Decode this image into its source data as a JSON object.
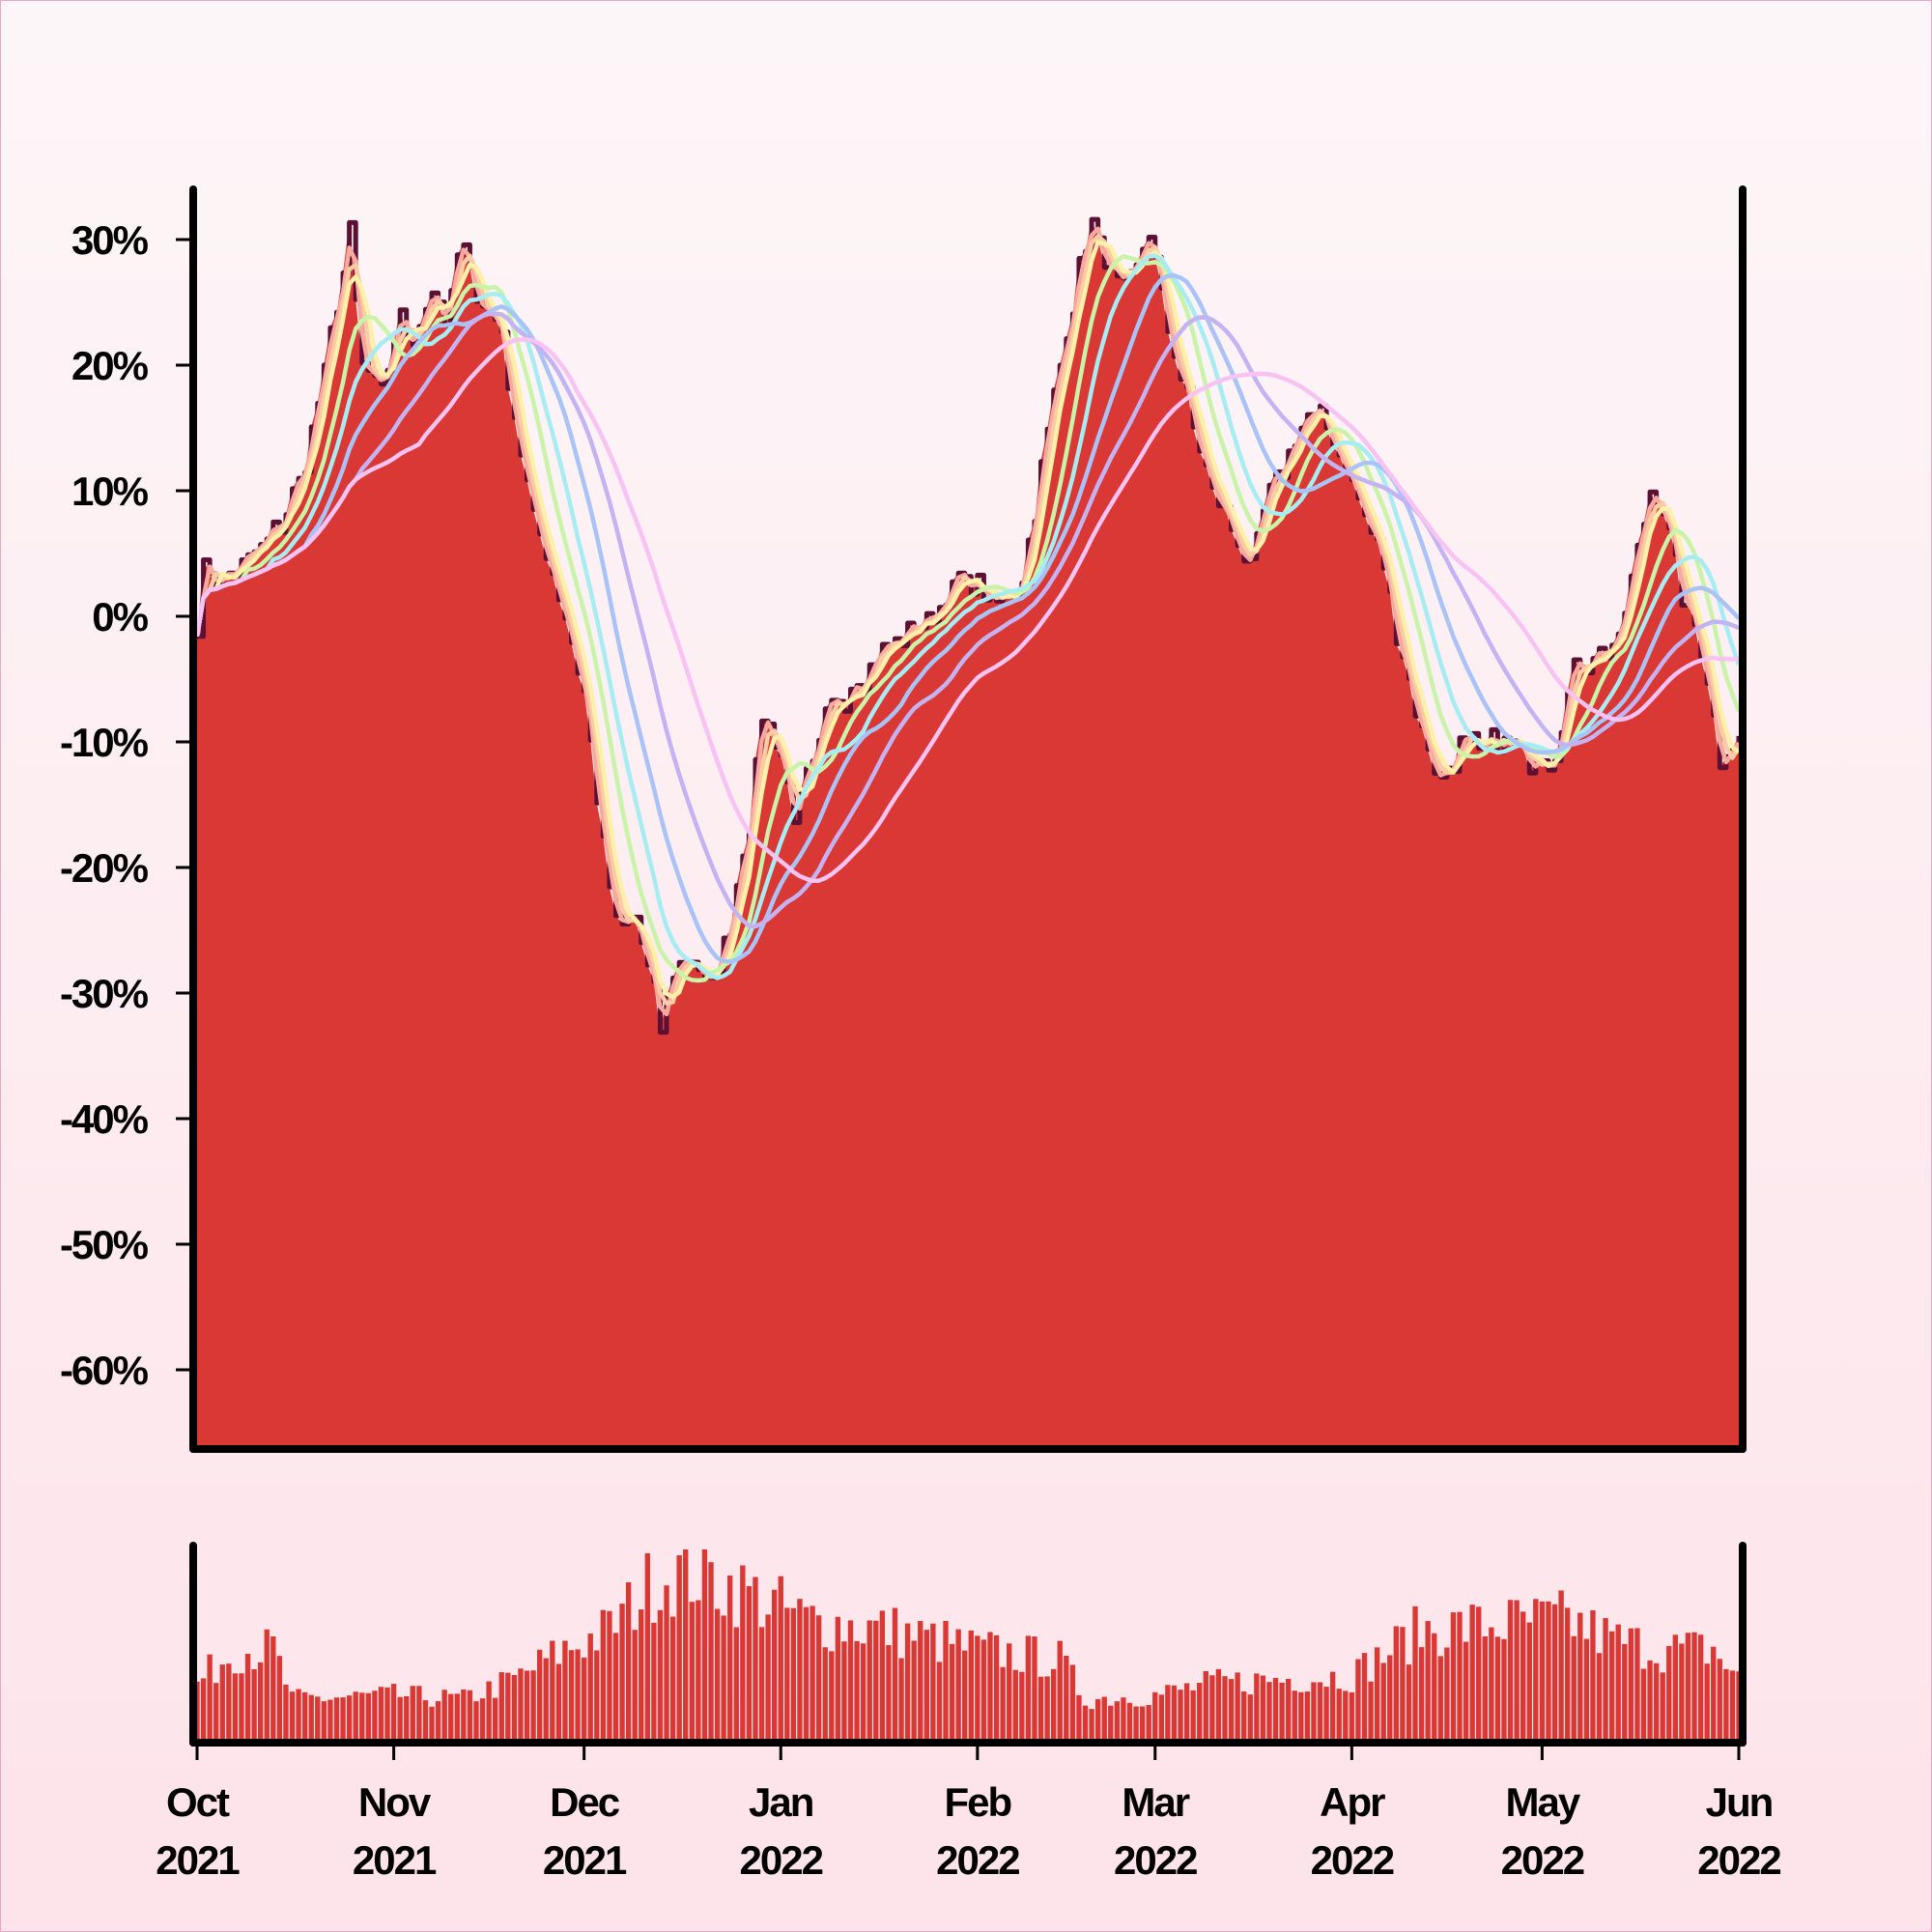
{
  "chart_data": {
    "type": "area",
    "x_axis": {
      "ticks": [
        {
          "date": "2021-10-01",
          "month": "Oct",
          "year": "2021"
        },
        {
          "date": "2021-11-01",
          "month": "Nov",
          "year": "2021"
        },
        {
          "date": "2021-12-01",
          "month": "Dec",
          "year": "2021"
        },
        {
          "date": "2022-01-01",
          "month": "Jan",
          "year": "2022"
        },
        {
          "date": "2022-02-01",
          "month": "Feb",
          "year": "2022"
        },
        {
          "date": "2022-03-01",
          "month": "Mar",
          "year": "2022"
        },
        {
          "date": "2022-04-01",
          "month": "Apr",
          "year": "2022"
        },
        {
          "date": "2022-05-01",
          "month": "May",
          "year": "2022"
        },
        {
          "date": "2022-06-01",
          "month": "Jun",
          "year": "2022"
        }
      ],
      "range": [
        "2021-10-01",
        "2022-06-01"
      ]
    },
    "y_axis": {
      "ticks": [
        30,
        20,
        10,
        0,
        -10,
        -20,
        -30,
        -40,
        -50,
        -60
      ],
      "tick_labels": [
        "30%",
        "20%",
        "10%",
        "0%",
        "-10%",
        "-20%",
        "-30%",
        "-40%",
        "-50%",
        "-60%"
      ],
      "ylim": [
        -66,
        34
      ]
    },
    "grid": false,
    "colors": {
      "area_fill": "#da3834",
      "area_edge": "#5c1034",
      "moving_averages": [
        "#f7a99e",
        "#fbcba5",
        "#fdf0a8",
        "#c9f3a8",
        "#a7ecf3",
        "#a9c3f7",
        "#c4b3f2",
        "#f8c2f3"
      ],
      "volume": "#da3834",
      "axis": "#000000"
    },
    "series": {
      "main_keypoints": [
        [
          "2021-10-01",
          0
        ],
        [
          "2021-10-02",
          4
        ],
        [
          "2021-10-05",
          3
        ],
        [
          "2021-10-10",
          5
        ],
        [
          "2021-10-14",
          7
        ],
        [
          "2021-10-18",
          12
        ],
        [
          "2021-10-22",
          22
        ],
        [
          "2021-10-25",
          30
        ],
        [
          "2021-10-27",
          20
        ],
        [
          "2021-10-30",
          18
        ],
        [
          "2021-11-02",
          24
        ],
        [
          "2021-11-04",
          22
        ],
        [
          "2021-11-07",
          26
        ],
        [
          "2021-11-09",
          23
        ],
        [
          "2021-11-12",
          31
        ],
        [
          "2021-11-14",
          25
        ],
        [
          "2021-11-17",
          24
        ],
        [
          "2021-11-20",
          16
        ],
        [
          "2021-11-23",
          8
        ],
        [
          "2021-11-27",
          2
        ],
        [
          "2021-12-01",
          -6
        ],
        [
          "2021-12-04",
          -18
        ],
        [
          "2021-12-06",
          -25
        ],
        [
          "2021-12-09",
          -24
        ],
        [
          "2021-12-11",
          -28
        ],
        [
          "2021-12-13",
          -33
        ],
        [
          "2021-12-15",
          -28
        ],
        [
          "2021-12-18",
          -27
        ],
        [
          "2021-12-21",
          -30
        ],
        [
          "2021-12-24",
          -24
        ],
        [
          "2021-12-27",
          -16
        ],
        [
          "2021-12-29",
          -8
        ],
        [
          "2022-01-01",
          -11
        ],
        [
          "2022-01-03",
          -16
        ],
        [
          "2022-01-06",
          -12
        ],
        [
          "2022-01-09",
          -7
        ],
        [
          "2022-01-13",
          -5
        ],
        [
          "2022-01-17",
          -3
        ],
        [
          "2022-01-21",
          -1
        ],
        [
          "2022-01-25",
          0
        ],
        [
          "2022-01-29",
          3
        ],
        [
          "2022-02-01",
          2
        ],
        [
          "2022-02-04",
          1
        ],
        [
          "2022-02-08",
          3
        ],
        [
          "2022-02-11",
          12
        ],
        [
          "2022-02-14",
          20
        ],
        [
          "2022-02-17",
          28
        ],
        [
          "2022-02-19",
          31
        ],
        [
          "2022-02-22",
          27
        ],
        [
          "2022-02-25",
          26
        ],
        [
          "2022-02-28",
          31
        ],
        [
          "2022-03-03",
          23
        ],
        [
          "2022-03-07",
          15
        ],
        [
          "2022-03-10",
          10
        ],
        [
          "2022-03-13",
          7
        ],
        [
          "2022-03-16",
          4
        ],
        [
          "2022-03-19",
          10
        ],
        [
          "2022-03-22",
          13
        ],
        [
          "2022-03-25",
          16
        ],
        [
          "2022-03-28",
          15
        ],
        [
          "2022-03-31",
          12
        ],
        [
          "2022-04-03",
          8
        ],
        [
          "2022-04-06",
          4
        ],
        [
          "2022-04-09",
          -3
        ],
        [
          "2022-04-12",
          -9
        ],
        [
          "2022-04-15",
          -13
        ],
        [
          "2022-04-18",
          -10
        ],
        [
          "2022-04-21",
          -11
        ],
        [
          "2022-04-25",
          -10
        ],
        [
          "2022-04-29",
          -11
        ],
        [
          "2022-05-03",
          -11
        ],
        [
          "2022-05-06",
          -4
        ],
        [
          "2022-05-09",
          -3
        ],
        [
          "2022-05-13",
          -2
        ],
        [
          "2022-05-15",
          3
        ],
        [
          "2022-05-18",
          10
        ],
        [
          "2022-05-20",
          9
        ],
        [
          "2022-05-23",
          2
        ],
        [
          "2022-05-26",
          -2
        ],
        [
          "2022-05-29",
          -11
        ],
        [
          "2022-06-01",
          -10
        ]
      ],
      "moving_average_windows": [
        2,
        3,
        4,
        8,
        12,
        18,
        26,
        36
      ]
    },
    "volume": {
      "type": "bar",
      "level_keypoints": [
        [
          "2021-10-01",
          0.28
        ],
        [
          "2021-10-07",
          0.45
        ],
        [
          "2021-10-13",
          0.45
        ],
        [
          "2021-10-16",
          0.2
        ],
        [
          "2021-11-01",
          0.22
        ],
        [
          "2021-11-12",
          0.2
        ],
        [
          "2021-11-20",
          0.3
        ],
        [
          "2021-11-28",
          0.45
        ],
        [
          "2021-12-05",
          0.55
        ],
        [
          "2021-12-12",
          0.8
        ],
        [
          "2021-12-17",
          0.85
        ],
        [
          "2021-12-26",
          0.75
        ],
        [
          "2022-01-05",
          0.6
        ],
        [
          "2022-01-18",
          0.55
        ],
        [
          "2022-02-01",
          0.45
        ],
        [
          "2022-02-14",
          0.4
        ],
        [
          "2022-02-18",
          0.2
        ],
        [
          "2022-03-01",
          0.22
        ],
        [
          "2022-03-10",
          0.28
        ],
        [
          "2022-03-20",
          0.3
        ],
        [
          "2022-04-01",
          0.32
        ],
        [
          "2022-04-12",
          0.55
        ],
        [
          "2022-04-25",
          0.58
        ],
        [
          "2022-05-05",
          0.6
        ],
        [
          "2022-05-12",
          0.5
        ],
        [
          "2022-05-20",
          0.45
        ],
        [
          "2022-05-28",
          0.45
        ],
        [
          "2022-06-01",
          0.3
        ]
      ]
    }
  }
}
